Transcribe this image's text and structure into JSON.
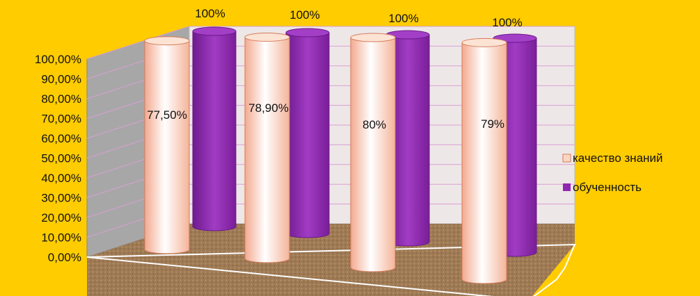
{
  "chart_data": {
    "type": "bar",
    "title": "",
    "xlabel": "",
    "ylabel": "",
    "categories": [
      "",
      "",
      "",
      ""
    ],
    "series": [
      {
        "name": "качество знаний",
        "values": [
          77.5,
          78.9,
          80,
          79
        ],
        "data_labels": [
          "77,50%",
          "78,90%",
          "80%",
          "79%"
        ]
      },
      {
        "name": "обученность",
        "values": [
          100,
          100,
          100,
          100
        ],
        "data_labels": [
          "100%",
          "100%",
          "100%",
          "100%"
        ]
      }
    ],
    "ylim": [
      0,
      100
    ],
    "y_ticks": [
      "0,00%",
      "10,00%",
      "20,00%",
      "30,00%",
      "40,00%",
      "50,00%",
      "60,00%",
      "70,00%",
      "80,00%",
      "90,00%",
      "100,00%"
    ],
    "grid": true,
    "legend_position": "right",
    "three_d": true,
    "bar_shape": "cylinder",
    "colors": {
      "background": "#FFCC00",
      "back_wall": "#EEE7E7",
      "side_wall": "#A7A7A7",
      "floor": "#9E7A55",
      "gridline": "#D9A0D6",
      "series_1": "#FBD7C3",
      "series_2": "#9126B0"
    }
  }
}
